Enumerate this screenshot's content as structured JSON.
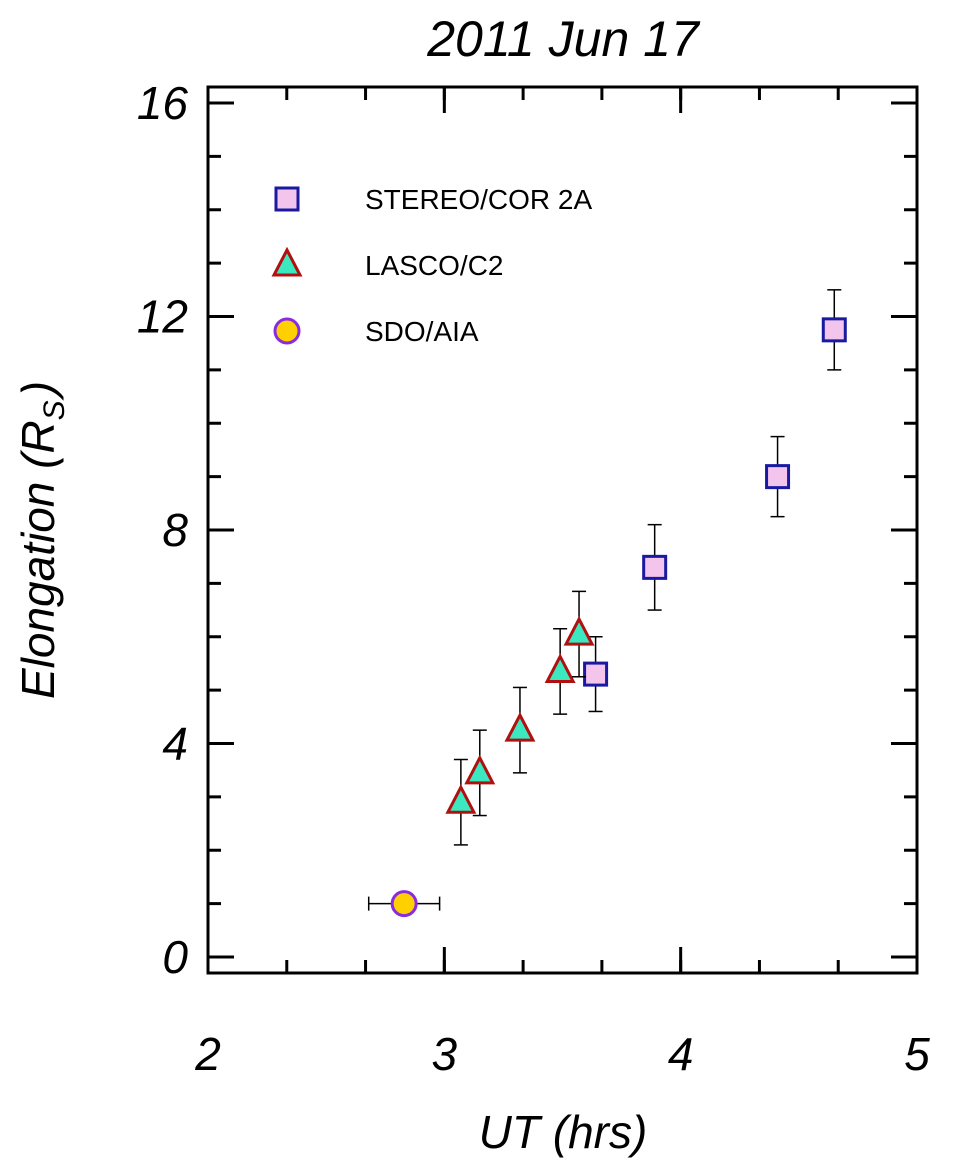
{
  "chart_data": {
    "type": "scatter",
    "title": "2011 Jun 17",
    "xlabel": "UT (hrs)",
    "ylabel": {
      "main": "Elongation (R",
      "sub": "S",
      "close": ")"
    },
    "xlim": [
      2,
      5
    ],
    "ylim": [
      -0.3,
      16.3
    ],
    "xticks": [
      2,
      3,
      4,
      5
    ],
    "yticks": [
      0,
      4,
      8,
      12,
      16
    ],
    "x_minor_step": 0.333333,
    "y_minor_step": 1,
    "legend_position": "top-left",
    "series": [
      {
        "name": "STEREO/COR 2A",
        "marker": "square",
        "fill": "#f4c5ec",
        "stroke": "#1a1aa0",
        "points": [
          {
            "x": 3.64,
            "y": 5.3,
            "yerr": 0.7
          },
          {
            "x": 3.89,
            "y": 7.3,
            "yerr": 0.8
          },
          {
            "x": 4.41,
            "y": 9.0,
            "yerr": 0.75
          },
          {
            "x": 4.65,
            "y": 11.75,
            "yerr": 0.75
          }
        ]
      },
      {
        "name": "LASCO/C2",
        "marker": "triangle",
        "fill": "#3be8c0",
        "stroke": "#b01010",
        "points": [
          {
            "x": 3.07,
            "y": 2.9,
            "yerr": 0.8
          },
          {
            "x": 3.15,
            "y": 3.45,
            "yerr": 0.8
          },
          {
            "x": 3.32,
            "y": 4.25,
            "yerr": 0.8
          },
          {
            "x": 3.49,
            "y": 5.35,
            "yerr": 0.8
          },
          {
            "x": 3.57,
            "y": 6.05,
            "yerr": 0.8
          }
        ]
      },
      {
        "name": "SDO/AIA",
        "marker": "circle",
        "fill": "#ffd000",
        "stroke": "#8a2be2",
        "points": [
          {
            "x": 2.83,
            "y": 1.0,
            "xerr": 0.15
          }
        ]
      }
    ]
  }
}
